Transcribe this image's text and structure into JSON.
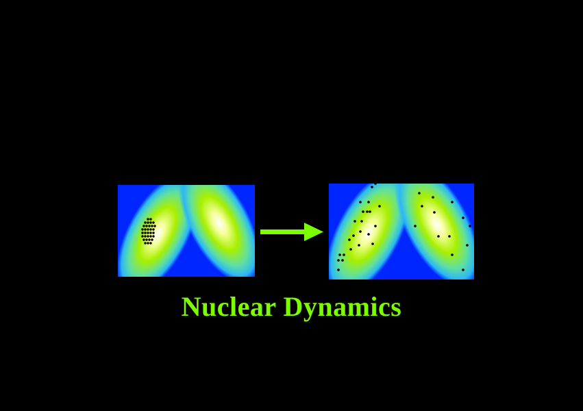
{
  "caption": "Nuclear Dynamics",
  "colors": {
    "background": "#000000",
    "caption": "#7CFC00",
    "arrow": "#7CFC00",
    "field_low": "#0022FF",
    "field_mid": "#27C8F0",
    "field_high": "#A0F000",
    "field_peak": "#FFFFFF",
    "particle": "#000000"
  },
  "panels": [
    {
      "name": "initial-state",
      "particles": "compact-cluster"
    },
    {
      "name": "final-state",
      "particles": "scattered"
    }
  ],
  "arrow_icon": "right-arrow-icon"
}
